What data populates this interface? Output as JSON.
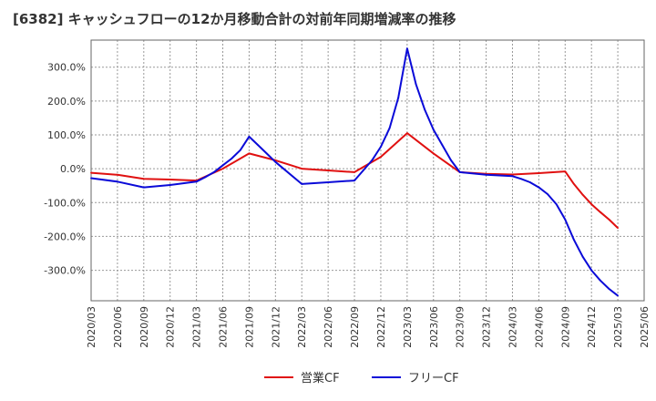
{
  "chart_data": {
    "type": "line",
    "title": "[6382]  キャッシュフローの12か月移動合計の対前年同期増減率の推移",
    "xlabel": "",
    "ylabel": "",
    "x_ticks": [
      "2020/03",
      "2020/06",
      "2020/09",
      "2020/12",
      "2021/03",
      "2021/06",
      "2021/09",
      "2021/12",
      "2022/03",
      "2022/06",
      "2022/09",
      "2022/12",
      "2023/03",
      "2023/06",
      "2023/09",
      "2023/12",
      "2024/03",
      "2024/06",
      "2024/09",
      "2024/12",
      "2025/03",
      "2025/06"
    ],
    "y_ticks": [
      "300.0%",
      "200.0%",
      "100.0%",
      "0.0%",
      "-100.0%",
      "-200.0%",
      "-300.0%"
    ],
    "y_tick_values": [
      300,
      200,
      100,
      0,
      -100,
      -200,
      -300
    ],
    "ylim": [
      -390,
      380
    ],
    "grid": true,
    "legend_position": "bottom",
    "series": [
      {
        "name": "営業CF",
        "color": "#e01010",
        "points": [
          [
            "2020/03",
            -12
          ],
          [
            "2020/06",
            -18
          ],
          [
            "2020/09",
            -30
          ],
          [
            "2020/12",
            -32
          ],
          [
            "2021/03",
            -35
          ],
          [
            "2021/06",
            0
          ],
          [
            "2021/09",
            45
          ],
          [
            "2021/12",
            25
          ],
          [
            "2022/03",
            0
          ],
          [
            "2022/06",
            -5
          ],
          [
            "2022/09",
            -10
          ],
          [
            "2022/12",
            35
          ],
          [
            "2023/03",
            105
          ],
          [
            "2023/06",
            45
          ],
          [
            "2023/09",
            -10
          ],
          [
            "2023/12",
            -15
          ],
          [
            "2024/03",
            -17
          ],
          [
            "2024/06",
            -13
          ],
          [
            "2024/09",
            -8
          ],
          [
            "2024/10",
            -45
          ],
          [
            "2024/11",
            -77
          ],
          [
            "2024/12",
            -105
          ],
          [
            "2025/01",
            -128
          ],
          [
            "2025/02",
            -150
          ],
          [
            "2025/03",
            -175
          ]
        ]
      },
      {
        "name": "フリーCF",
        "color": "#0a0ad8",
        "points": [
          [
            "2020/03",
            -28
          ],
          [
            "2020/06",
            -38
          ],
          [
            "2020/09",
            -55
          ],
          [
            "2020/12",
            -48
          ],
          [
            "2021/03",
            -38
          ],
          [
            "2021/04",
            -25
          ],
          [
            "2021/05",
            -10
          ],
          [
            "2021/06",
            10
          ],
          [
            "2021/07",
            30
          ],
          [
            "2021/08",
            55
          ],
          [
            "2021/09",
            95
          ],
          [
            "2021/10",
            70
          ],
          [
            "2021/11",
            45
          ],
          [
            "2021/12",
            20
          ],
          [
            "2022/03",
            -45
          ],
          [
            "2022/06",
            -40
          ],
          [
            "2022/09",
            -35
          ],
          [
            "2022/10",
            -5
          ],
          [
            "2022/11",
            25
          ],
          [
            "2022/12",
            65
          ],
          [
            "2023/01",
            120
          ],
          [
            "2023/02",
            210
          ],
          [
            "2023/03",
            355
          ],
          [
            "2023/04",
            250
          ],
          [
            "2023/05",
            175
          ],
          [
            "2023/06",
            115
          ],
          [
            "2023/07",
            70
          ],
          [
            "2023/08",
            25
          ],
          [
            "2023/09",
            -10
          ],
          [
            "2023/12",
            -18
          ],
          [
            "2024/03",
            -22
          ],
          [
            "2024/04",
            -30
          ],
          [
            "2024/05",
            -40
          ],
          [
            "2024/06",
            -55
          ],
          [
            "2024/07",
            -75
          ],
          [
            "2024/08",
            -105
          ],
          [
            "2024/09",
            -150
          ],
          [
            "2024/10",
            -210
          ],
          [
            "2024/11",
            -260
          ],
          [
            "2024/12",
            -300
          ],
          [
            "2025/01",
            -330
          ],
          [
            "2025/02",
            -355
          ],
          [
            "2025/03",
            -375
          ]
        ]
      }
    ]
  }
}
